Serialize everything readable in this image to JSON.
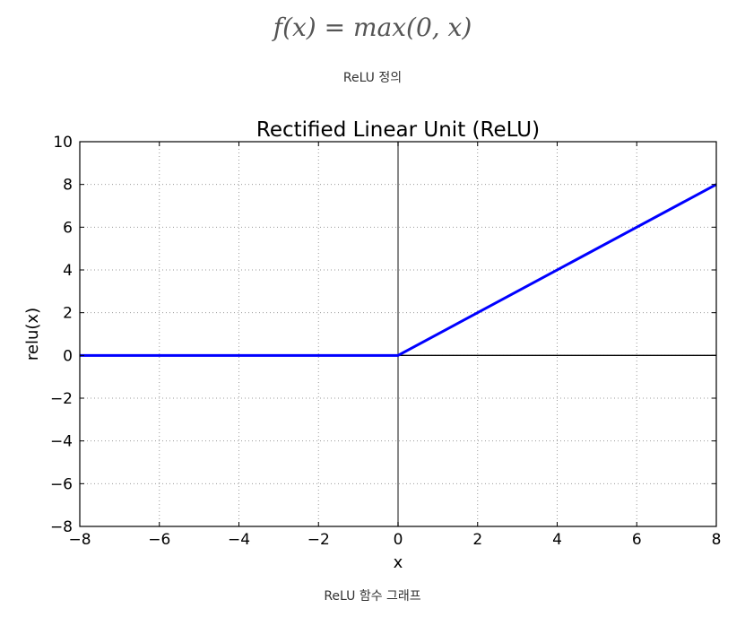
{
  "formula": "f(x) = max(0, x)",
  "caption_definition": "ReLU 정의",
  "caption_graph": "ReLU 함수 그래프",
  "chart_data": {
    "type": "line",
    "title": "Rectified Linear Unit (ReLU)",
    "xlabel": "x",
    "ylabel": "relu(x)",
    "xlim": [
      -8,
      8
    ],
    "ylim": [
      -8,
      10
    ],
    "xticks": [
      -8,
      -6,
      -4,
      -2,
      0,
      2,
      4,
      6,
      8
    ],
    "yticks": [
      -8,
      -6,
      -4,
      -2,
      0,
      2,
      4,
      6,
      8,
      10
    ],
    "grid": true,
    "series": [
      {
        "name": "relu",
        "color": "#0000ff",
        "x": [
          -8,
          0,
          8
        ],
        "y": [
          0,
          0,
          8
        ]
      }
    ],
    "reference_lines": {
      "x0_color": "#555555",
      "y0_color": "#000000"
    }
  }
}
